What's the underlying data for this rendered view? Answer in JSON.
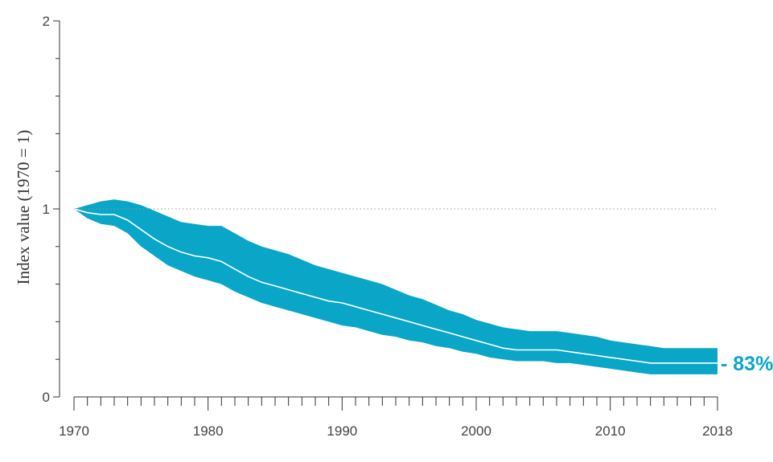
{
  "chart_data": {
    "type": "area",
    "title": "",
    "xlabel": "",
    "ylabel": "Index value (1970 = 1)",
    "xlim": [
      1970,
      2018
    ],
    "ylim": [
      0,
      2
    ],
    "x_ticks": [
      1970,
      1980,
      1990,
      2000,
      2010,
      2018
    ],
    "y_ticks": [
      0,
      1,
      2
    ],
    "reference_line": 1,
    "end_label": "- 83%",
    "colors": {
      "band": "#0aa6c8",
      "line": "#ffffff",
      "axis": "#333333",
      "reference": "#999999",
      "label": "#0aa6c8"
    },
    "series": [
      {
        "name": "Index",
        "x": [
          1970,
          1971,
          1972,
          1973,
          1974,
          1975,
          1976,
          1977,
          1978,
          1979,
          1980,
          1981,
          1982,
          1983,
          1984,
          1985,
          1986,
          1987,
          1988,
          1989,
          1990,
          1991,
          1992,
          1993,
          1994,
          1995,
          1996,
          1997,
          1998,
          1999,
          2000,
          2001,
          2002,
          2003,
          2004,
          2005,
          2006,
          2007,
          2008,
          2009,
          2010,
          2011,
          2012,
          2013,
          2014,
          2015,
          2016,
          2017,
          2018
        ],
        "values": [
          1.0,
          0.98,
          0.97,
          0.97,
          0.94,
          0.89,
          0.84,
          0.8,
          0.77,
          0.75,
          0.74,
          0.72,
          0.68,
          0.64,
          0.61,
          0.59,
          0.57,
          0.55,
          0.53,
          0.51,
          0.5,
          0.48,
          0.46,
          0.44,
          0.42,
          0.4,
          0.38,
          0.36,
          0.34,
          0.32,
          0.3,
          0.28,
          0.26,
          0.25,
          0.25,
          0.25,
          0.25,
          0.24,
          0.23,
          0.22,
          0.21,
          0.2,
          0.19,
          0.18,
          0.18,
          0.18,
          0.18,
          0.18,
          0.18
        ],
        "upper": [
          1.0,
          1.02,
          1.04,
          1.05,
          1.04,
          1.02,
          0.99,
          0.96,
          0.93,
          0.92,
          0.91,
          0.91,
          0.87,
          0.83,
          0.8,
          0.78,
          0.76,
          0.73,
          0.7,
          0.68,
          0.66,
          0.64,
          0.62,
          0.6,
          0.57,
          0.54,
          0.52,
          0.49,
          0.46,
          0.44,
          0.41,
          0.39,
          0.37,
          0.36,
          0.35,
          0.35,
          0.35,
          0.34,
          0.33,
          0.32,
          0.3,
          0.29,
          0.28,
          0.27,
          0.26,
          0.26,
          0.26,
          0.26,
          0.26
        ],
        "lower": [
          1.0,
          0.95,
          0.92,
          0.91,
          0.87,
          0.8,
          0.75,
          0.7,
          0.67,
          0.64,
          0.62,
          0.6,
          0.56,
          0.53,
          0.5,
          0.48,
          0.46,
          0.44,
          0.42,
          0.4,
          0.38,
          0.37,
          0.35,
          0.33,
          0.32,
          0.3,
          0.29,
          0.27,
          0.26,
          0.24,
          0.23,
          0.21,
          0.2,
          0.19,
          0.19,
          0.19,
          0.18,
          0.18,
          0.17,
          0.16,
          0.15,
          0.14,
          0.13,
          0.12,
          0.12,
          0.12,
          0.12,
          0.12,
          0.12
        ]
      }
    ]
  }
}
